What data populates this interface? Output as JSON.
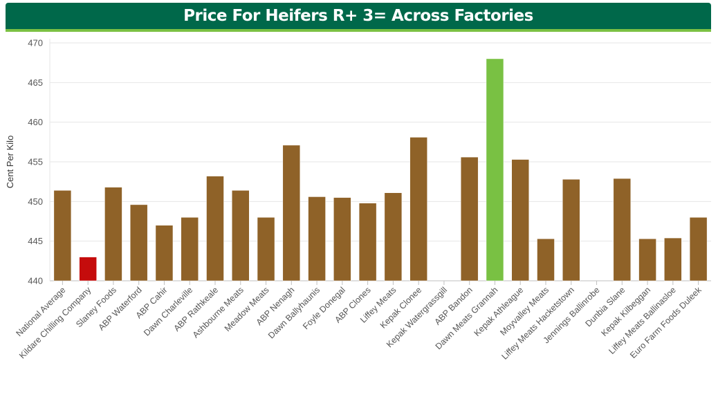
{
  "chart_data": {
    "type": "bar",
    "title": "Price For Heifers R+ 3= Across Factories",
    "ylabel": "Cent Per Kilo",
    "ylim": [
      440,
      470
    ],
    "yticks": [
      440,
      445,
      450,
      455,
      460,
      465,
      470
    ],
    "grid": true,
    "legend": "none",
    "categories": [
      "National Average",
      "Kildare Chilling Company",
      "Slaney Foods",
      "ABP Waterford",
      "ABP Cahir",
      "Dawn Charleville",
      "ABP Rathkeale",
      "Ashbourne Meats",
      "Meadow Meats",
      "ABP Nenagh",
      "Dawn Ballyhaunis",
      "Foyle Donegal",
      "ABP Clones",
      "Liffey Meats",
      "Kepak Clonee",
      "Kepak Watergrassgill",
      "ABP Bandon",
      "Dawn Meats Grannah",
      "Kepak Athleague",
      "Moyvalley Meats",
      "Liffey Meats Hacketstown",
      "Jennings Ballinrobe",
      "Dunbia Slane",
      "Kepak Kilbeggan",
      "Liffey Meats Ballinasloe",
      "Euro Farm Foods Duleek"
    ],
    "values": [
      451.4,
      443.0,
      451.8,
      449.6,
      447.0,
      448.0,
      453.2,
      451.4,
      448.0,
      457.1,
      450.6,
      450.5,
      449.8,
      451.1,
      458.1,
      null,
      455.6,
      468.0,
      455.3,
      445.3,
      452.8,
      null,
      452.9,
      445.3,
      445.4,
      448.0
    ],
    "colors": {
      "default": "#8f6228",
      "lowest": "#c50c0c",
      "highest": "#79c143"
    },
    "highlight": {
      "lowest_index": 1,
      "highest_index": 17
    }
  }
}
